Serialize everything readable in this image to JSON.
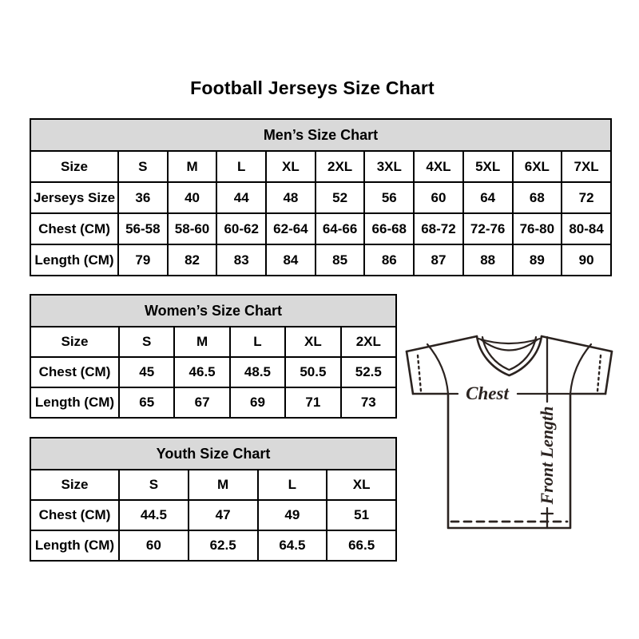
{
  "title": "Football Jerseys Size Chart",
  "chart_data": [
    {
      "type": "table",
      "title": "Men’s Size Chart",
      "rows": [
        [
          "Size",
          "S",
          "M",
          "L",
          "XL",
          "2XL",
          "3XL",
          "4XL",
          "5XL",
          "6XL",
          "7XL"
        ],
        [
          "Jerseys Size",
          "36",
          "40",
          "44",
          "48",
          "52",
          "56",
          "60",
          "64",
          "68",
          "72"
        ],
        [
          "Chest (CM)",
          "56-58",
          "58-60",
          "60-62",
          "62-64",
          "64-66",
          "66-68",
          "68-72",
          "72-76",
          "76-80",
          "80-84"
        ],
        [
          "Length (CM)",
          "79",
          "82",
          "83",
          "84",
          "85",
          "86",
          "87",
          "88",
          "89",
          "90"
        ]
      ]
    },
    {
      "type": "table",
      "title": "Women’s Size Chart",
      "rows": [
        [
          "Size",
          "S",
          "M",
          "L",
          "XL",
          "2XL"
        ],
        [
          "Chest (CM)",
          "45",
          "46.5",
          "48.5",
          "50.5",
          "52.5"
        ],
        [
          "Length (CM)",
          "65",
          "67",
          "69",
          "71",
          "73"
        ]
      ]
    },
    {
      "type": "table",
      "title": "Youth Size Chart",
      "rows": [
        [
          "Size",
          "S",
          "M",
          "L",
          "XL"
        ],
        [
          "Chest (CM)",
          "44.5",
          "47",
          "49",
          "51"
        ],
        [
          "Length (CM)",
          "60",
          "62.5",
          "64.5",
          "66.5"
        ]
      ]
    }
  ],
  "diagram": {
    "chest_label": "Chest",
    "front_length_label": "Front Length"
  },
  "colors": {
    "header_bg": "#d9d9d9",
    "table_border": "#000000",
    "text": "#000000",
    "diagram_line": "#2b2320"
  }
}
